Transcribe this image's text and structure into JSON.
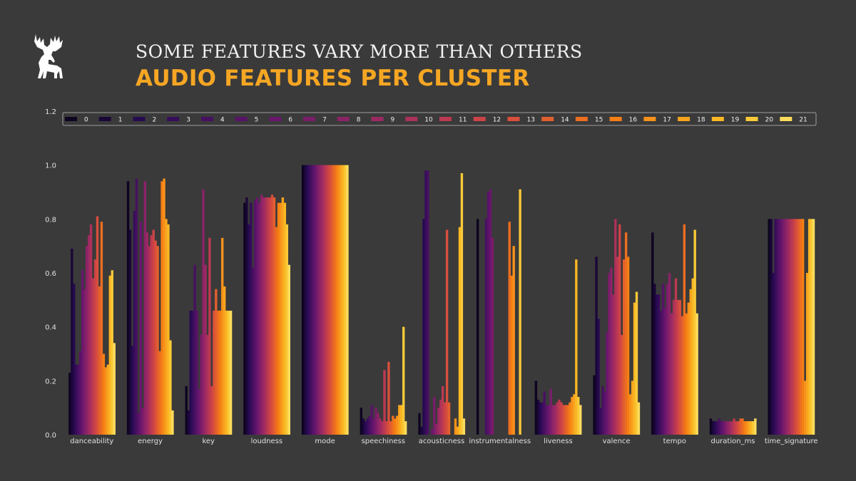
{
  "header": {
    "subtitle": "SOME FEATURES VARY MORE THAN OTHERS",
    "title": "AUDIO FEATURES PER CLUSTER"
  },
  "colors": {
    "background": "#3a3a3a",
    "title_accent": "#f5a623",
    "palette": "inferno"
  },
  "logo": {
    "icon": "moose-icon"
  },
  "chart_data": {
    "type": "bar",
    "grouped": true,
    "legend_placement": "top",
    "grid": false,
    "ylim": [
      0,
      1.2
    ],
    "yticks": [
      "0.0",
      "0.2",
      "0.4",
      "0.6",
      "0.8",
      "1.0",
      "1.2"
    ],
    "categories": [
      "danceability",
      "energy",
      "key",
      "loudness",
      "mode",
      "speechiness",
      "acousticness",
      "instrumentalness",
      "liveness",
      "valence",
      "tempo",
      "duration_ms",
      "time_signature"
    ],
    "series": [
      {
        "name": "0",
        "values": [
          0.23,
          0.94,
          0.18,
          0.86,
          1.0,
          0.1,
          0.08,
          0.8,
          0.2,
          0.22,
          0.75,
          0.06,
          0.8
        ]
      },
      {
        "name": "1",
        "values": [
          0.69,
          0.76,
          0.09,
          0.88,
          1.0,
          0.06,
          0.03,
          0.0,
          0.13,
          0.66,
          0.56,
          0.05,
          0.8
        ]
      },
      {
        "name": "2",
        "values": [
          0.56,
          0.33,
          0.46,
          0.78,
          1.0,
          0.05,
          0.8,
          0.0,
          0.12,
          0.43,
          0.52,
          0.05,
          0.6
        ]
      },
      {
        "name": "3",
        "values": [
          0.26,
          0.83,
          0.46,
          0.86,
          1.0,
          0.06,
          0.98,
          0.0,
          0.12,
          0.1,
          0.52,
          0.05,
          0.8
        ]
      },
      {
        "name": "4",
        "values": [
          0.26,
          0.95,
          0.63,
          0.62,
          1.0,
          0.07,
          0.98,
          0.8,
          0.16,
          0.18,
          0.46,
          0.06,
          0.8
        ]
      },
      {
        "name": "5",
        "values": [
          0.31,
          0.08,
          0.46,
          0.87,
          1.0,
          0.11,
          0.0,
          0.9,
          0.11,
          0.16,
          0.56,
          0.05,
          0.8
        ]
      },
      {
        "name": "6",
        "values": [
          0.61,
          0.79,
          0.17,
          0.88,
          1.0,
          0.06,
          0.02,
          0.91,
          0.11,
          0.38,
          0.47,
          0.05,
          0.8
        ]
      },
      {
        "name": "7",
        "values": [
          0.54,
          0.1,
          0.37,
          0.86,
          1.0,
          0.1,
          0.14,
          0.73,
          0.17,
          0.6,
          0.56,
          0.05,
          0.8
        ]
      },
      {
        "name": "8",
        "values": [
          0.7,
          0.94,
          0.91,
          0.89,
          1.0,
          0.08,
          0.04,
          0.0,
          0.11,
          0.62,
          0.6,
          0.05,
          0.8
        ]
      },
      {
        "name": "9",
        "values": [
          0.74,
          0.75,
          0.63,
          0.88,
          1.0,
          0.06,
          0.1,
          0.0,
          0.11,
          0.52,
          0.45,
          0.05,
          0.8
        ]
      },
      {
        "name": "10",
        "values": [
          0.78,
          0.7,
          0.37,
          0.88,
          1.0,
          0.05,
          0.13,
          0.0,
          0.12,
          0.8,
          0.5,
          0.05,
          0.8
        ]
      },
      {
        "name": "11",
        "values": [
          0.58,
          0.74,
          0.73,
          0.88,
          1.0,
          0.24,
          0.18,
          0.0,
          0.13,
          0.66,
          0.58,
          0.06,
          0.8
        ]
      },
      {
        "name": "12",
        "values": [
          0.65,
          0.76,
          0.18,
          0.88,
          1.0,
          0.05,
          0.12,
          0.0,
          0.12,
          0.78,
          0.5,
          0.05,
          0.8
        ]
      },
      {
        "name": "13",
        "values": [
          0.81,
          0.72,
          0.46,
          0.89,
          1.0,
          0.27,
          0.76,
          0.0,
          0.11,
          0.37,
          0.5,
          0.05,
          0.8
        ]
      },
      {
        "name": "14",
        "values": [
          0.55,
          0.7,
          0.54,
          0.88,
          1.0,
          0.05,
          0.12,
          0.0,
          0.11,
          0.65,
          0.44,
          0.06,
          0.8
        ]
      },
      {
        "name": "15",
        "values": [
          0.79,
          0.31,
          0.46,
          0.77,
          1.0,
          0.07,
          0.0,
          0.79,
          0.11,
          0.75,
          0.78,
          0.06,
          0.8
        ]
      },
      {
        "name": "16",
        "values": [
          0.3,
          0.94,
          0.46,
          0.86,
          1.0,
          0.06,
          0.0,
          0.59,
          0.12,
          0.66,
          0.45,
          0.05,
          0.8
        ]
      },
      {
        "name": "17",
        "values": [
          0.25,
          0.95,
          0.73,
          0.86,
          1.0,
          0.07,
          0.06,
          0.7,
          0.14,
          0.15,
          0.49,
          0.05,
          0.2
        ]
      },
      {
        "name": "18",
        "values": [
          0.26,
          0.8,
          0.55,
          0.88,
          1.0,
          0.11,
          0.03,
          0.0,
          0.15,
          0.2,
          0.54,
          0.05,
          0.6
        ]
      },
      {
        "name": "19",
        "values": [
          0.59,
          0.78,
          0.46,
          0.86,
          1.0,
          0.11,
          0.77,
          0.0,
          0.65,
          0.49,
          0.58,
          0.05,
          0.8
        ]
      },
      {
        "name": "20",
        "values": [
          0.61,
          0.35,
          0.46,
          0.78,
          1.0,
          0.4,
          0.97,
          0.91,
          0.14,
          0.53,
          0.76,
          0.05,
          0.8
        ]
      },
      {
        "name": "21",
        "values": [
          0.34,
          0.09,
          0.46,
          0.63,
          1.0,
          0.05,
          0.06,
          0.0,
          0.11,
          0.12,
          0.45,
          0.06,
          0.8
        ]
      }
    ]
  }
}
